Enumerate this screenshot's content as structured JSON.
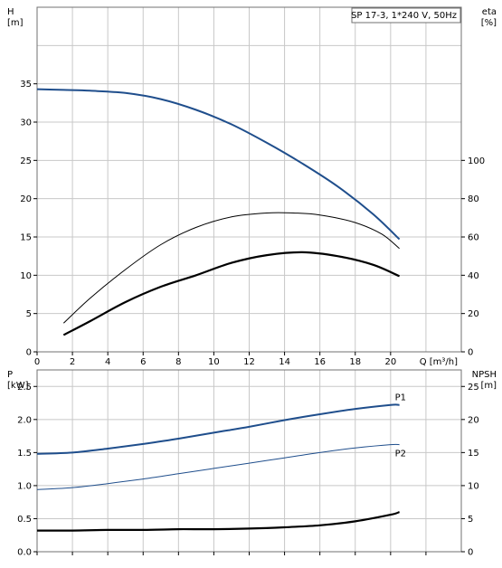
{
  "chart_data": [
    {
      "type": "line",
      "panel": "head-efficiency",
      "title": "SP 17-3, 1*240 V, 50Hz",
      "xlabel": "Q [m³/h]",
      "xlim": [
        0,
        24
      ],
      "xticks": [
        0,
        2,
        4,
        6,
        8,
        10,
        12,
        14,
        16,
        18,
        20
      ],
      "ylabel_left": "H",
      "ylabel_left_unit": "[m]",
      "ylim_left": [
        0,
        45
      ],
      "yticks_left": [
        0,
        5,
        10,
        15,
        20,
        25,
        30,
        35
      ],
      "ylabel_right": "eta",
      "ylabel_right_unit": "[%]",
      "ylim_right": [
        0,
        180
      ],
      "yticks_right": [
        0,
        20,
        40,
        60,
        80,
        100
      ],
      "grid": true,
      "series": [
        {
          "axis": "left",
          "color": "#1f4e8c",
          "x": [
            0,
            1.5,
            3,
            5,
            7,
            9,
            11,
            13,
            15,
            17,
            19,
            20.5
          ],
          "values": [
            34.3,
            34.2,
            34.1,
            33.8,
            33.0,
            31.6,
            29.7,
            27.3,
            24.6,
            21.6,
            18.0,
            14.7
          ]
        },
        {
          "axis": "right",
          "color": "#000000",
          "x": [
            1.5,
            3,
            5,
            7,
            9,
            11,
            13,
            14.5,
            16,
            18,
            19.5,
            20.5
          ],
          "values": [
            15,
            28,
            43,
            56,
            65,
            70.5,
            72.5,
            72.5,
            71.5,
            67.5,
            61.5,
            54
          ]
        },
        {
          "axis": "right",
          "color": "#000000",
          "x": [
            1.5,
            3,
            5,
            7,
            9,
            11,
            13,
            15,
            17,
            19,
            20.5
          ],
          "values": [
            8.8,
            16,
            26,
            34,
            40,
            46.5,
            50.5,
            52,
            50,
            45.5,
            39.5
          ]
        }
      ]
    },
    {
      "type": "line",
      "panel": "power-npsh",
      "xlim": [
        0,
        24
      ],
      "ylabel_left": "P",
      "ylabel_left_unit": "[kW]",
      "ylim_left": [
        0,
        2.75
      ],
      "yticks_left": [
        "0.0",
        "0.5",
        "1.0",
        "1.5",
        "2.0",
        "2.5"
      ],
      "ylabel_right": "NPSH",
      "ylabel_right_unit": "[m]",
      "ylim_right": [
        0,
        27.5
      ],
      "yticks_right": [
        0,
        5,
        10,
        15,
        20,
        25
      ],
      "grid": true,
      "series": [
        {
          "name": "P1",
          "axis": "left",
          "color": "#1f4e8c",
          "x": [
            0,
            2,
            4,
            6,
            8,
            10,
            12,
            14,
            16,
            18,
            20,
            20.5
          ],
          "values": [
            1.48,
            1.5,
            1.56,
            1.63,
            1.71,
            1.8,
            1.89,
            1.99,
            2.08,
            2.16,
            2.22,
            2.22
          ]
        },
        {
          "name": "P2",
          "axis": "left",
          "color": "#1f4e8c",
          "x": [
            0,
            2,
            4,
            6,
            8,
            10,
            12,
            14,
            16,
            18,
            20,
            20.5
          ],
          "values": [
            0.94,
            0.97,
            1.03,
            1.1,
            1.18,
            1.26,
            1.34,
            1.42,
            1.5,
            1.57,
            1.62,
            1.62
          ]
        },
        {
          "axis": "right",
          "color": "#000000",
          "x": [
            0,
            2,
            4,
            6,
            8,
            10,
            12,
            14,
            16,
            18,
            20,
            20.5
          ],
          "values": [
            3.2,
            3.2,
            3.3,
            3.3,
            3.4,
            3.4,
            3.5,
            3.7,
            4.0,
            4.6,
            5.6,
            6.0
          ]
        }
      ]
    }
  ]
}
